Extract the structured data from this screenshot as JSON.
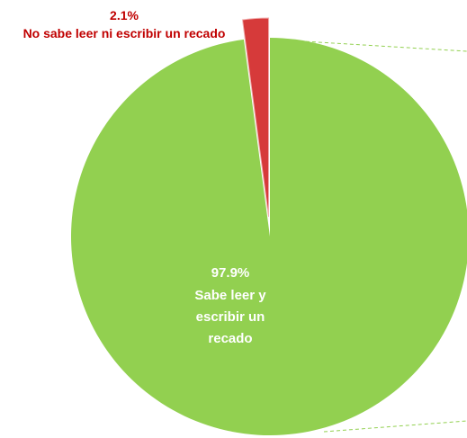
{
  "chart_data": {
    "type": "pie",
    "title": "",
    "slices": [
      {
        "label": "Sabe leer y escribir un recado",
        "label_lines": [
          "Sabe leer y",
          "escribir un",
          "recado"
        ],
        "value": 97.9,
        "value_label": "97.9%",
        "color": "#92d050"
      },
      {
        "label": "No sabe leer ni escribir un recado",
        "label_lines": [
          "No sabe leer ni escribir un recado"
        ],
        "value": 2.1,
        "value_label": "2.1%",
        "color": "#d63a3a"
      }
    ],
    "exploded_slice": "No sabe leer ni escribir un recado",
    "connector_color": "#92d050",
    "legend": "none"
  }
}
